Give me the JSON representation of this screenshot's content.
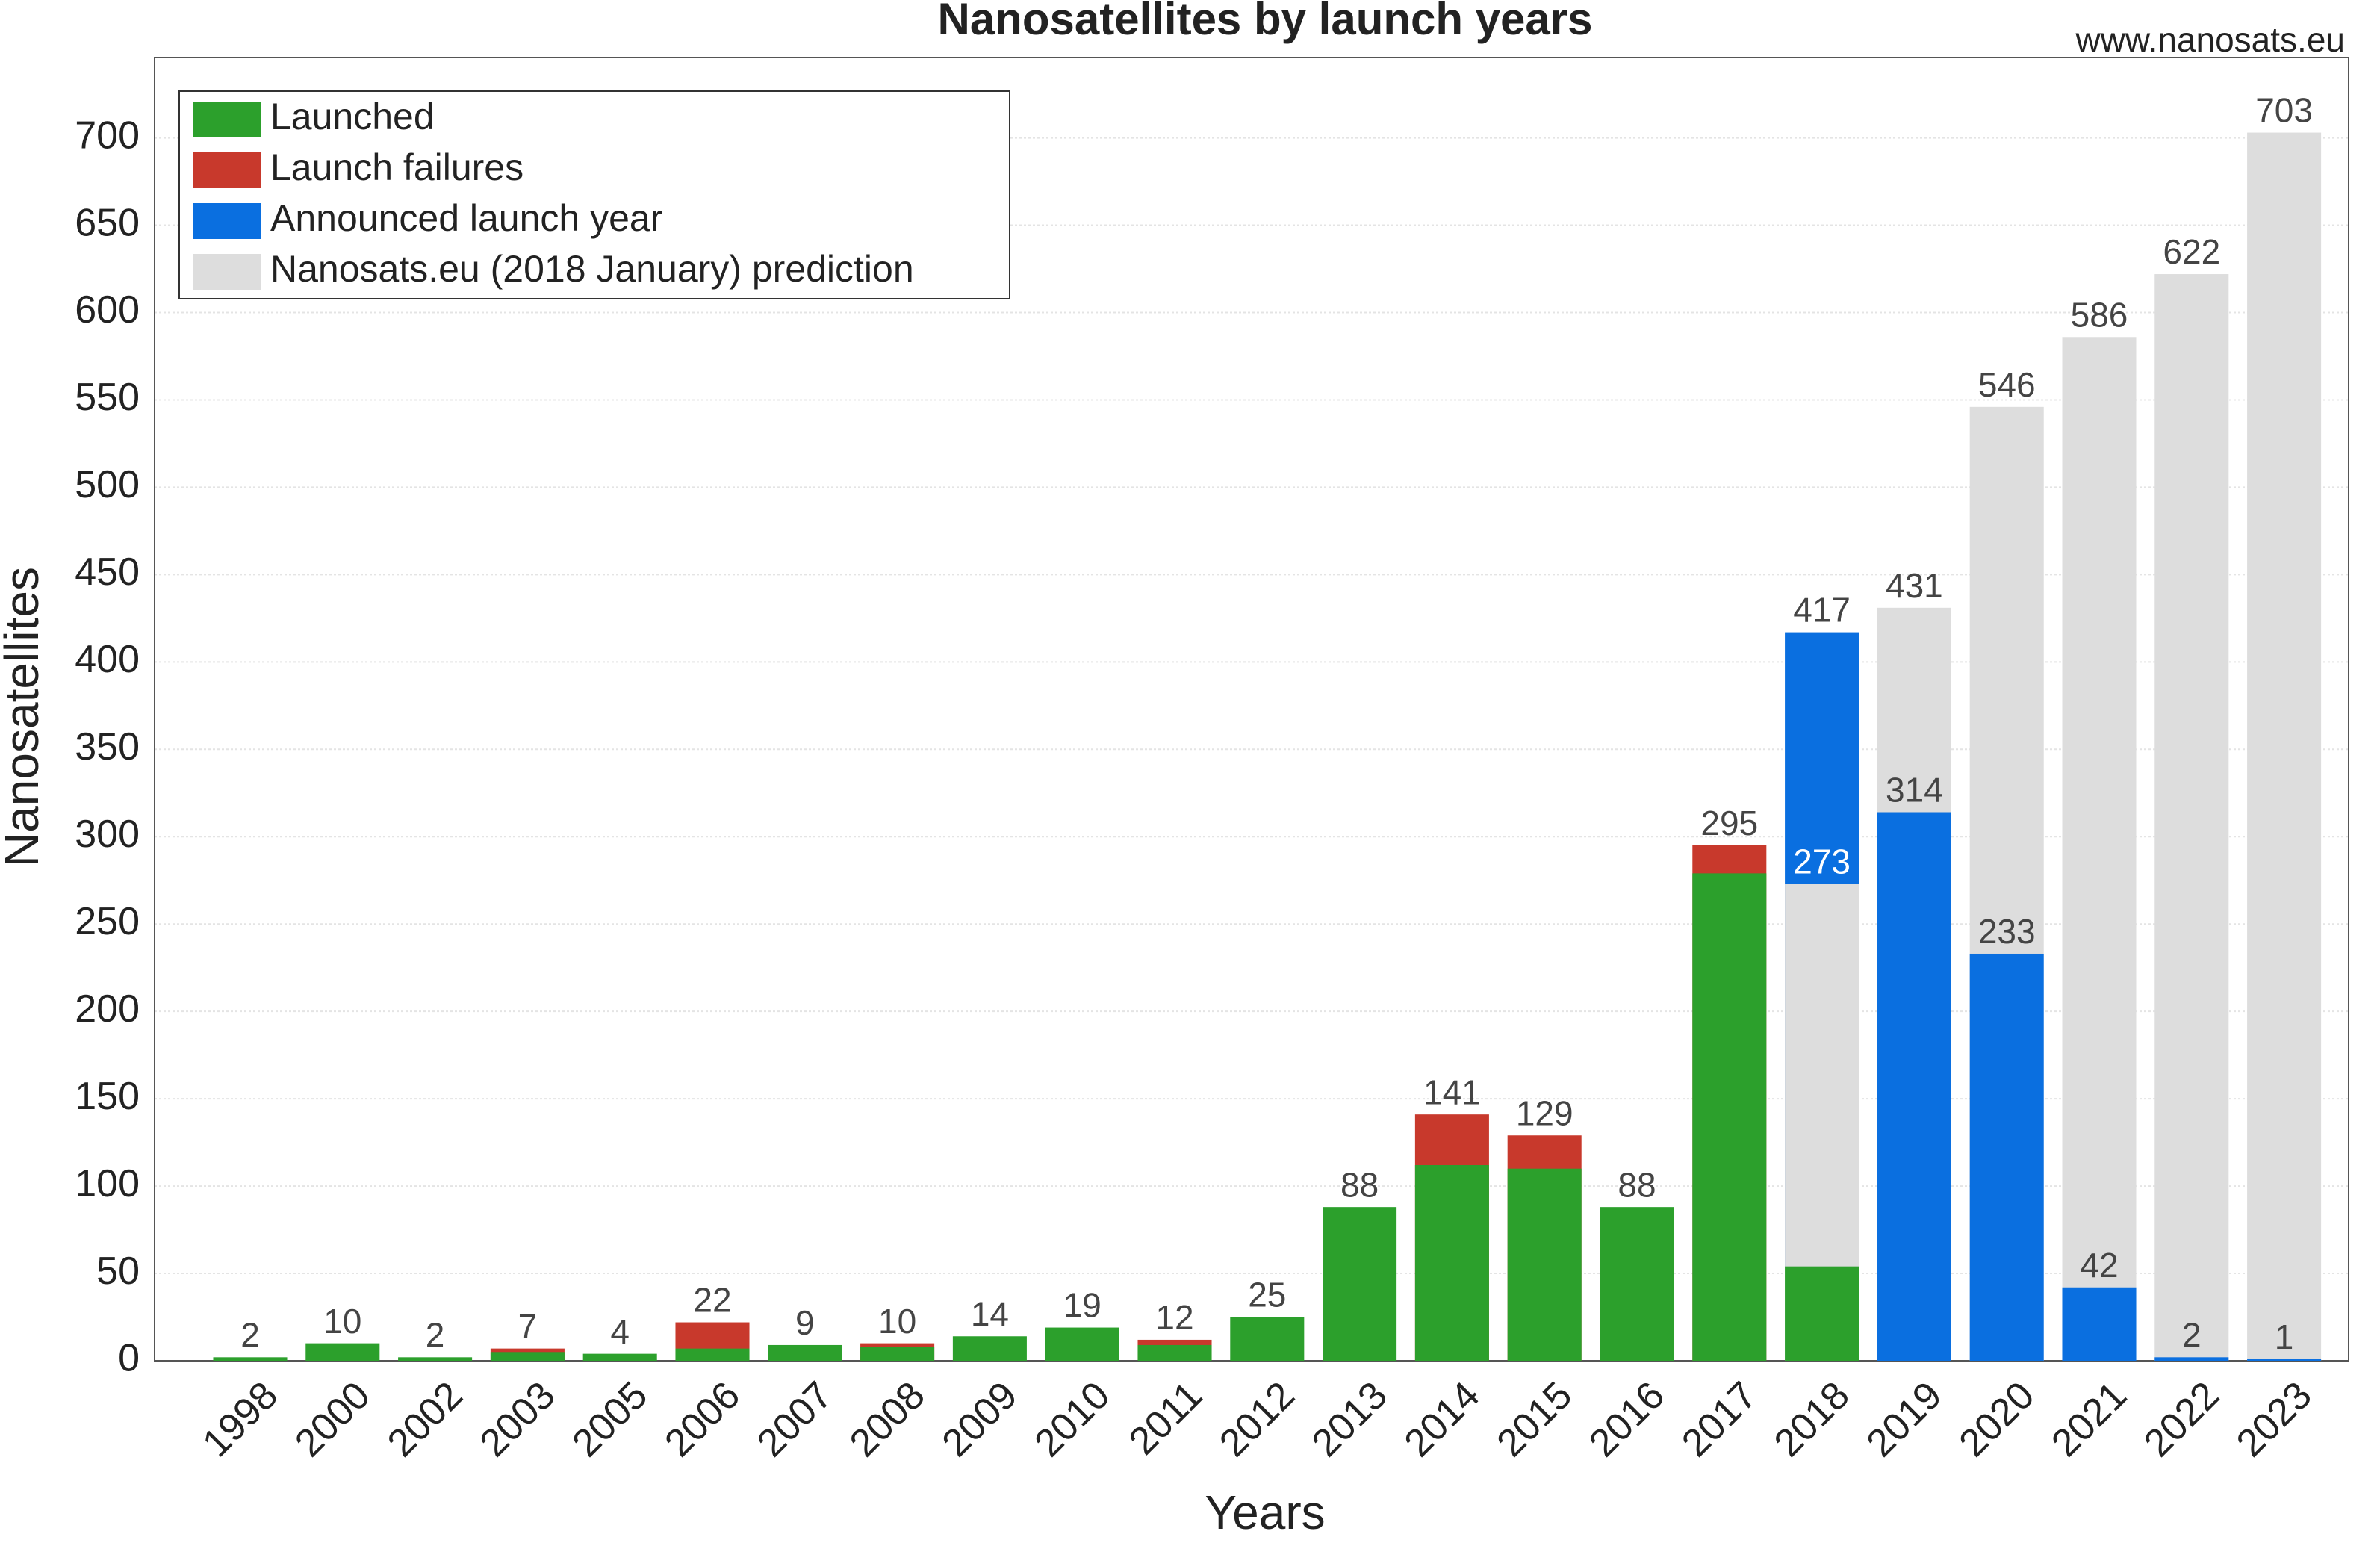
{
  "chart_data": {
    "type": "bar",
    "barmode": "overlay",
    "title": "Nanosatellites by launch years",
    "source": "www.nanosats.eu",
    "x_label": "Years",
    "y_label": "Nanosatellites",
    "categories": [
      "1998",
      "2000",
      "2002",
      "2003",
      "2005",
      "2006",
      "2007",
      "2008",
      "2009",
      "2010",
      "2011",
      "2012",
      "2013",
      "2014",
      "2015",
      "2016",
      "2017",
      "2018",
      "2019",
      "2020",
      "2021",
      "2022",
      "2023"
    ],
    "series": [
      {
        "name": "Launched",
        "color": "#2ca02c",
        "values": [
          2,
          10,
          2,
          5,
          4,
          7,
          9,
          8,
          14,
          19,
          9,
          25,
          88,
          112,
          110,
          88,
          279,
          54,
          null,
          null,
          null,
          null,
          null
        ],
        "value_labels": [
          "2",
          "10",
          "2",
          null,
          "4",
          null,
          "9",
          null,
          "14",
          "19",
          null,
          "25",
          "88",
          null,
          null,
          "88",
          null,
          null,
          null,
          null,
          null,
          null,
          null
        ]
      },
      {
        "name": "Launch failures",
        "color": "#c8392c",
        "values": [
          null,
          null,
          null,
          7,
          null,
          22,
          null,
          10,
          null,
          null,
          12,
          null,
          null,
          141,
          129,
          null,
          295,
          null,
          null,
          null,
          null,
          null,
          null
        ],
        "value_labels": [
          null,
          null,
          null,
          "7",
          null,
          "22",
          null,
          "10",
          null,
          null,
          "12",
          null,
          null,
          "141",
          "129",
          null,
          "295",
          null,
          null,
          null,
          null,
          null,
          null
        ]
      },
      {
        "name": "Announced launch year",
        "color": "#0a6fe0",
        "values": [
          null,
          null,
          null,
          null,
          null,
          null,
          null,
          null,
          null,
          null,
          null,
          null,
          null,
          null,
          null,
          null,
          null,
          417,
          314,
          233,
          42,
          2,
          1
        ],
        "value_labels": [
          null,
          null,
          null,
          null,
          null,
          null,
          null,
          null,
          null,
          null,
          null,
          null,
          null,
          null,
          null,
          null,
          null,
          "417",
          "314",
          "233",
          "42",
          "2",
          "1"
        ]
      },
      {
        "name": "Nanosats.eu (2018 January) prediction",
        "color": "#dddddd",
        "values": [
          null,
          null,
          null,
          null,
          null,
          null,
          null,
          null,
          null,
          null,
          null,
          null,
          null,
          null,
          null,
          null,
          null,
          273,
          431,
          546,
          586,
          622,
          703
        ],
        "value_labels": [
          null,
          null,
          null,
          null,
          null,
          null,
          null,
          null,
          null,
          null,
          null,
          null,
          null,
          null,
          null,
          null,
          null,
          "273",
          "431",
          "546",
          "586",
          "622",
          "703"
        ]
      }
    ],
    "ylim": [
      0,
      746
    ],
    "yticks": [
      0,
      50,
      100,
      150,
      200,
      250,
      300,
      350,
      400,
      450,
      500,
      550,
      600,
      650,
      700
    ],
    "grid": true,
    "legend": "upper left"
  }
}
